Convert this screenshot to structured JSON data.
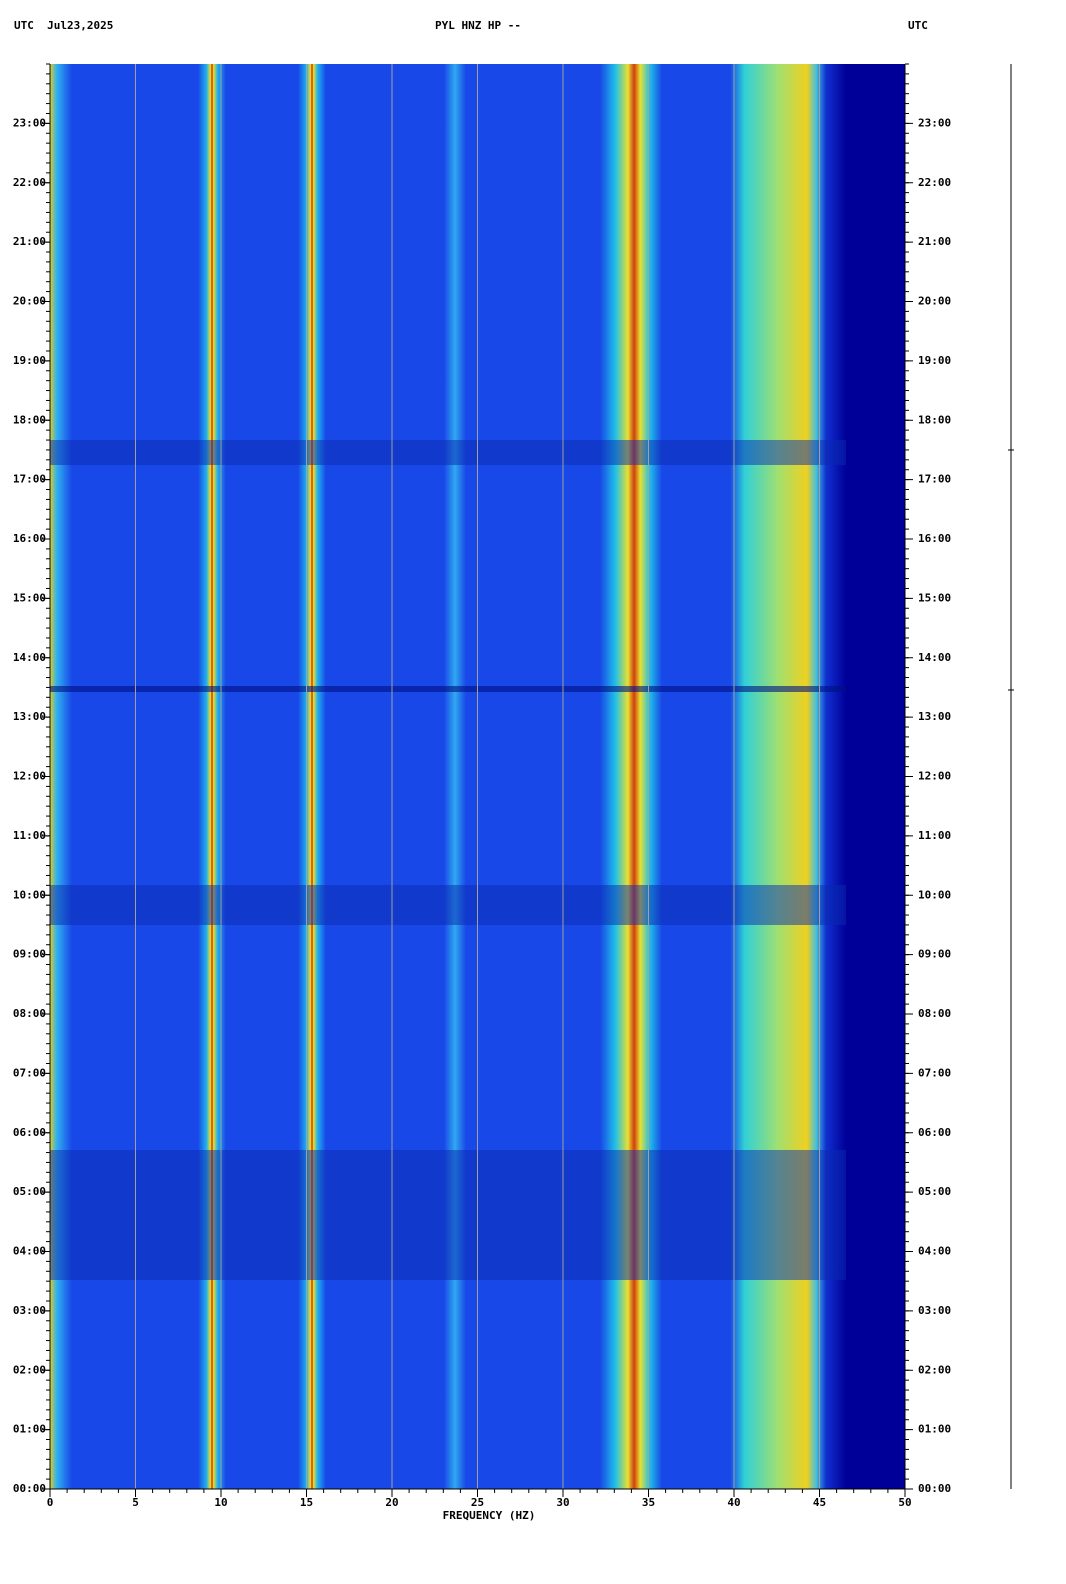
{
  "chart_data": {
    "type": "spectrogram",
    "title": "PYL HNZ HP --",
    "left_header": "UTC  Jul23,2025",
    "right_header": "UTC",
    "x_label": "FREQUENCY (HZ)",
    "xlim": [
      0,
      50
    ],
    "xticks": [
      0,
      5,
      10,
      15,
      20,
      25,
      30,
      35,
      40,
      45,
      50
    ],
    "ylim": [
      0,
      24
    ],
    "yticks": [
      {
        "value": 0,
        "label": "00:00"
      },
      {
        "value": 1,
        "label": "01:00"
      },
      {
        "value": 2,
        "label": "02:00"
      },
      {
        "value": 3,
        "label": "03:00"
      },
      {
        "value": 4,
        "label": "04:00"
      },
      {
        "value": 5,
        "label": "05:00"
      },
      {
        "value": 6,
        "label": "06:00"
      },
      {
        "value": 7,
        "label": "07:00"
      },
      {
        "value": 8,
        "label": "08:00"
      },
      {
        "value": 9,
        "label": "09:00"
      },
      {
        "value": 10,
        "label": "10:00"
      },
      {
        "value": 11,
        "label": "11:00"
      },
      {
        "value": 12,
        "label": "12:00"
      },
      {
        "value": 13,
        "label": "13:00"
      },
      {
        "value": 14,
        "label": "14:00"
      },
      {
        "value": 15,
        "label": "15:00"
      },
      {
        "value": 16,
        "label": "16:00"
      },
      {
        "value": 17,
        "label": "17:00"
      },
      {
        "value": 18,
        "label": "18:00"
      },
      {
        "value": 19,
        "label": "19:00"
      },
      {
        "value": 20,
        "label": "20:00"
      },
      {
        "value": 21,
        "label": "21:00"
      },
      {
        "value": 22,
        "label": "22:00"
      },
      {
        "value": 23,
        "label": "23:00"
      }
    ],
    "grid": true
  }
}
